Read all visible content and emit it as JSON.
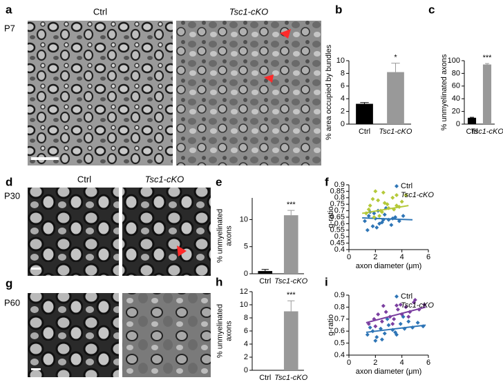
{
  "panels": [
    {
      "letter": "a",
      "stage": "P7",
      "image_titles": [
        "Ctrl",
        "Tsc1-cKO"
      ]
    },
    {
      "letter": "d",
      "stage": "P30",
      "image_titles": [
        "Ctrl",
        "Tsc1-cKO"
      ]
    },
    {
      "letter": "g",
      "stage": "P60"
    }
  ],
  "chart_data": [
    {
      "type": "bar",
      "panel": "b",
      "ylabel": [
        "% area occupied by bundles"
      ],
      "categories": [
        "Ctrl",
        "Tsc1-cKO"
      ],
      "values": [
        3.2,
        8.2
      ],
      "errors": [
        0.2,
        1.4
      ],
      "colors": [
        "#000000",
        "#999999"
      ],
      "annotation": "*",
      "ylim": [
        0,
        10
      ],
      "yticks": [
        0,
        2,
        4,
        6,
        8,
        10
      ]
    },
    {
      "type": "bar",
      "panel": "c",
      "ylabel": [
        "% unmyelinated axons"
      ],
      "categories": [
        "Ctrl",
        "Tsc1-cKO"
      ],
      "values": [
        10,
        94
      ],
      "errors": [
        0.8,
        1.5
      ],
      "colors": [
        "#000000",
        "#999999"
      ],
      "annotation": "***",
      "ylim": [
        0,
        100
      ],
      "yticks": [
        0,
        20,
        40,
        60,
        80,
        100
      ]
    },
    {
      "type": "bar",
      "panel": "e",
      "ylabel": [
        "% unmyelinated",
        "axons"
      ],
      "categories": [
        "Ctrl",
        "Tsc1-cKO"
      ],
      "values": [
        0.5,
        10.8
      ],
      "errors": [
        0.3,
        0.9
      ],
      "colors": [
        "#000000",
        "#999999"
      ],
      "annotation": "***",
      "ylim": [
        0,
        14
      ],
      "yticks": [
        0,
        5,
        10
      ]
    },
    {
      "type": "scatter",
      "panel": "f",
      "xlabel": "axon diameter (μm)",
      "ylabel": [
        "g-ratio"
      ],
      "xlim": [
        0,
        6
      ],
      "xticks": [
        0,
        2,
        4,
        6
      ],
      "ylim": [
        0.4,
        0.9
      ],
      "yticks": [
        0.4,
        0.45,
        0.5,
        0.55,
        0.6,
        0.65,
        0.7,
        0.75,
        0.8,
        0.85,
        0.9
      ],
      "legend": "top-right",
      "series": [
        {
          "name": "Ctrl",
          "color": "#2e75b6",
          "x": [
            1.2,
            1.5,
            1.8,
            2.0,
            2.2,
            2.5,
            2.7,
            3.0,
            3.2,
            3.5,
            3.8,
            4.1,
            1.4,
            1.9,
            2.3,
            2.8,
            3.3,
            1.6,
            2.1,
            2.6
          ],
          "values": [
            0.62,
            0.66,
            0.58,
            0.64,
            0.7,
            0.61,
            0.67,
            0.63,
            0.59,
            0.65,
            0.62,
            0.66,
            0.55,
            0.68,
            0.6,
            0.72,
            0.64,
            0.69,
            0.57,
            0.63
          ],
          "fit": {
            "x": [
              1,
              4.8
            ],
            "values": [
              0.645,
              0.63
            ]
          }
        },
        {
          "name": "Tsc1-cKO",
          "color": "#b5c93a",
          "x": [
            1.3,
            1.6,
            1.9,
            2.2,
            2.4,
            2.7,
            3.0,
            3.3,
            3.6,
            4.0,
            4.3,
            1.5,
            2.0,
            2.5,
            2.9,
            3.4,
            1.8,
            2.3,
            3.8,
            2.6
          ],
          "values": [
            0.68,
            0.74,
            0.65,
            0.78,
            0.7,
            0.76,
            0.72,
            0.8,
            0.74,
            0.77,
            0.82,
            0.71,
            0.85,
            0.69,
            0.75,
            0.71,
            0.79,
            0.66,
            0.73,
            0.84
          ],
          "fit": {
            "x": [
              1,
              4.5
            ],
            "values": [
              0.68,
              0.74
            ]
          }
        }
      ]
    },
    {
      "type": "bar",
      "panel": "h",
      "ylabel": [
        "% unmyelinated",
        "axons"
      ],
      "categories": [
        "Ctrl",
        "Tsc1-cKO"
      ],
      "values": [
        0,
        9
      ],
      "errors": [
        0,
        1.6
      ],
      "colors": [
        "#000000",
        "#999999"
      ],
      "annotation": "***",
      "ylim": [
        0,
        12
      ],
      "yticks": [
        0,
        2,
        4,
        6,
        8,
        10,
        12
      ]
    },
    {
      "type": "scatter",
      "panel": "i",
      "xlabel": "axon diameter (μm)",
      "ylabel": [
        "g-ratio"
      ],
      "xlim": [
        0,
        6
      ],
      "xticks": [
        0,
        2,
        4,
        6
      ],
      "ylim": [
        0.4,
        0.9
      ],
      "yticks": [
        0.4,
        0.5,
        0.6,
        0.7,
        0.8,
        0.9
      ],
      "legend": "top-right",
      "series": [
        {
          "name": "Ctrl",
          "color": "#2e75b6",
          "x": [
            1.4,
            1.8,
            2.1,
            2.4,
            2.7,
            3.0,
            3.3,
            3.6,
            3.9,
            4.2,
            4.5,
            4.8,
            5.2,
            5.6,
            2.0,
            2.9,
            3.5,
            4.1,
            1.6,
            2.5
          ],
          "values": [
            0.57,
            0.6,
            0.55,
            0.62,
            0.58,
            0.65,
            0.61,
            0.57,
            0.66,
            0.62,
            0.68,
            0.63,
            0.67,
            0.64,
            0.52,
            0.7,
            0.59,
            0.72,
            0.63,
            0.53
          ],
          "fit": {
            "x": [
              1.3,
              5.8
            ],
            "values": [
              0.59,
              0.65
            ]
          }
        },
        {
          "name": "Tsc1-cKO",
          "color": "#7b3fa0",
          "x": [
            1.5,
            1.9,
            2.2,
            2.5,
            2.8,
            3.1,
            3.4,
            3.7,
            4.0,
            4.3,
            4.6,
            4.9,
            5.3,
            5.7,
            2.0,
            2.6,
            3.3,
            3.9,
            4.5,
            5.0
          ],
          "values": [
            0.66,
            0.7,
            0.74,
            0.68,
            0.76,
            0.72,
            0.7,
            0.78,
            0.74,
            0.8,
            0.76,
            0.84,
            0.78,
            0.82,
            0.64,
            0.81,
            0.66,
            0.82,
            0.72,
            0.86
          ],
          "fit": {
            "x": [
              1.3,
              5.8
            ],
            "values": [
              0.67,
              0.8
            ]
          }
        }
      ]
    }
  ]
}
